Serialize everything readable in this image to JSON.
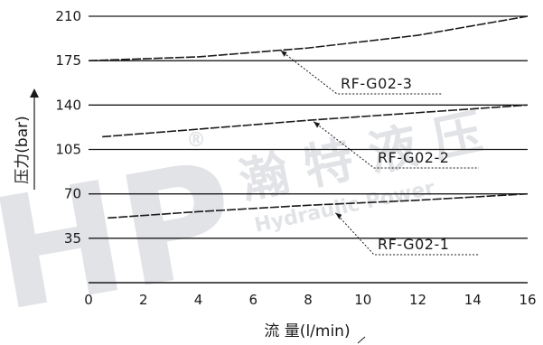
{
  "chart_data": {
    "type": "line",
    "xlabel": "流 量(l/min)",
    "ylabel": "压力(bar)",
    "xlim": [
      0,
      16
    ],
    "ylim": [
      0,
      210
    ],
    "x_ticks": [
      "0",
      "2",
      "4",
      "6",
      "8",
      "10",
      "12",
      "14",
      "16"
    ],
    "y_ticks": [
      "35",
      "70",
      "105",
      "140",
      "175",
      "210"
    ],
    "grid": "horizontal",
    "series": [
      {
        "name": "RF-G02-1",
        "label_anchor": [
          9,
          55
        ],
        "points": [
          [
            0.7,
            51
          ],
          [
            4,
            56
          ],
          [
            8,
            61
          ],
          [
            12,
            65
          ],
          [
            16,
            70
          ]
        ]
      },
      {
        "name": "RF-G02-2",
        "label_anchor": [
          8.2,
          127
        ],
        "points": [
          [
            0.5,
            115
          ],
          [
            4,
            121
          ],
          [
            8,
            128
          ],
          [
            12,
            134
          ],
          [
            16,
            140
          ]
        ]
      },
      {
        "name": "RF-G02-3",
        "label_anchor": [
          7,
          183
        ],
        "points": [
          [
            0,
            175
          ],
          [
            4,
            178
          ],
          [
            8,
            185
          ],
          [
            12,
            195
          ],
          [
            16,
            210
          ]
        ]
      }
    ]
  },
  "watermark": {
    "logo_text": "HP",
    "registered_mark": "®",
    "brand_text": "瀚 特 液 压",
    "brand_subtext": "Hydraulic Power",
    "color": "#c9ccd2"
  },
  "colors": {
    "line": "#1a1a1a",
    "grid": "#1a1a1a",
    "text": "#1a1a1a"
  }
}
